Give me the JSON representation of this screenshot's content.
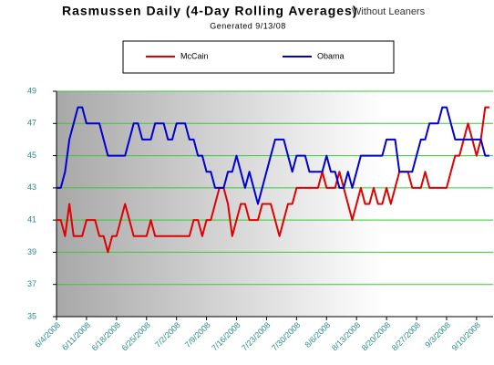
{
  "chart_data": {
    "type": "line",
    "title": "Rasmussen Daily (4-Day Rolling Averages)",
    "title_note": "Without Leaners",
    "subtitle": "Generated 9/13/08",
    "categories": [
      "6/4/2008",
      null,
      null,
      null,
      null,
      null,
      null,
      "6/11/2008",
      null,
      null,
      null,
      null,
      null,
      null,
      "6/18/2008",
      null,
      null,
      null,
      null,
      null,
      null,
      "6/25/2008",
      null,
      null,
      null,
      null,
      null,
      null,
      "7/2/2008",
      null,
      null,
      null,
      null,
      null,
      null,
      "7/9/2008",
      null,
      null,
      null,
      null,
      null,
      null,
      "7/16/2008",
      null,
      null,
      null,
      null,
      null,
      null,
      "7/23/2008",
      null,
      null,
      null,
      null,
      null,
      null,
      "7/30/2008",
      null,
      null,
      null,
      null,
      null,
      null,
      "8/6/2008",
      null,
      null,
      null,
      null,
      null,
      null,
      "8/13/2008",
      null,
      null,
      null,
      null,
      null,
      null,
      "8/20/2008",
      null,
      null,
      null,
      null,
      null,
      null,
      "8/27/2008",
      null,
      null,
      null,
      null,
      null,
      null,
      "9/3/2008",
      null,
      null,
      null,
      null,
      null,
      null,
      "9/10/2008",
      null,
      null,
      null
    ],
    "series": [
      {
        "name": "McCain",
        "color": "#e00000",
        "values": [
          41,
          41,
          40,
          42,
          40,
          40,
          40,
          41,
          41,
          41,
          40,
          40,
          39,
          40,
          40,
          41,
          42,
          41,
          40,
          40,
          40,
          40,
          41,
          40,
          40,
          40,
          40,
          40,
          40,
          40,
          40,
          40,
          41,
          41,
          40,
          41,
          41,
          42,
          43,
          43,
          42,
          40,
          41,
          42,
          42,
          41,
          41,
          41,
          42,
          42,
          42,
          41,
          40,
          41,
          42,
          42,
          43,
          43,
          43,
          43,
          43,
          43,
          44,
          43,
          43,
          43,
          44,
          43,
          42,
          41,
          42,
          43,
          42,
          42,
          43,
          42,
          42,
          43,
          42,
          43,
          44,
          44,
          44,
          43,
          43,
          43,
          44,
          43,
          43,
          43,
          43,
          43,
          44,
          45,
          45,
          46,
          47,
          46,
          45,
          46,
          48,
          48
        ]
      },
      {
        "name": "Obama",
        "color": "#0000d0",
        "values": [
          43,
          43,
          44,
          46,
          47,
          48,
          48,
          47,
          47,
          47,
          47,
          46,
          45,
          45,
          45,
          45,
          45,
          46,
          47,
          47,
          46,
          46,
          46,
          47,
          47,
          47,
          46,
          46,
          47,
          47,
          47,
          46,
          46,
          45,
          45,
          44,
          44,
          43,
          43,
          43,
          44,
          44,
          45,
          44,
          43,
          44,
          43,
          42,
          43,
          44,
          45,
          46,
          46,
          46,
          45,
          44,
          45,
          45,
          45,
          44,
          44,
          44,
          44,
          45,
          44,
          44,
          43,
          43,
          44,
          43,
          44,
          45,
          45,
          45,
          45,
          45,
          45,
          46,
          46,
          46,
          44,
          44,
          44,
          44,
          45,
          46,
          46,
          47,
          47,
          47,
          48,
          48,
          47,
          46,
          46,
          46,
          46,
          46,
          46,
          46,
          45,
          45
        ]
      }
    ],
    "ylim": [
      35,
      49
    ],
    "yticks": [
      35,
      37,
      39,
      41,
      43,
      45,
      47,
      49
    ],
    "grid": true
  }
}
